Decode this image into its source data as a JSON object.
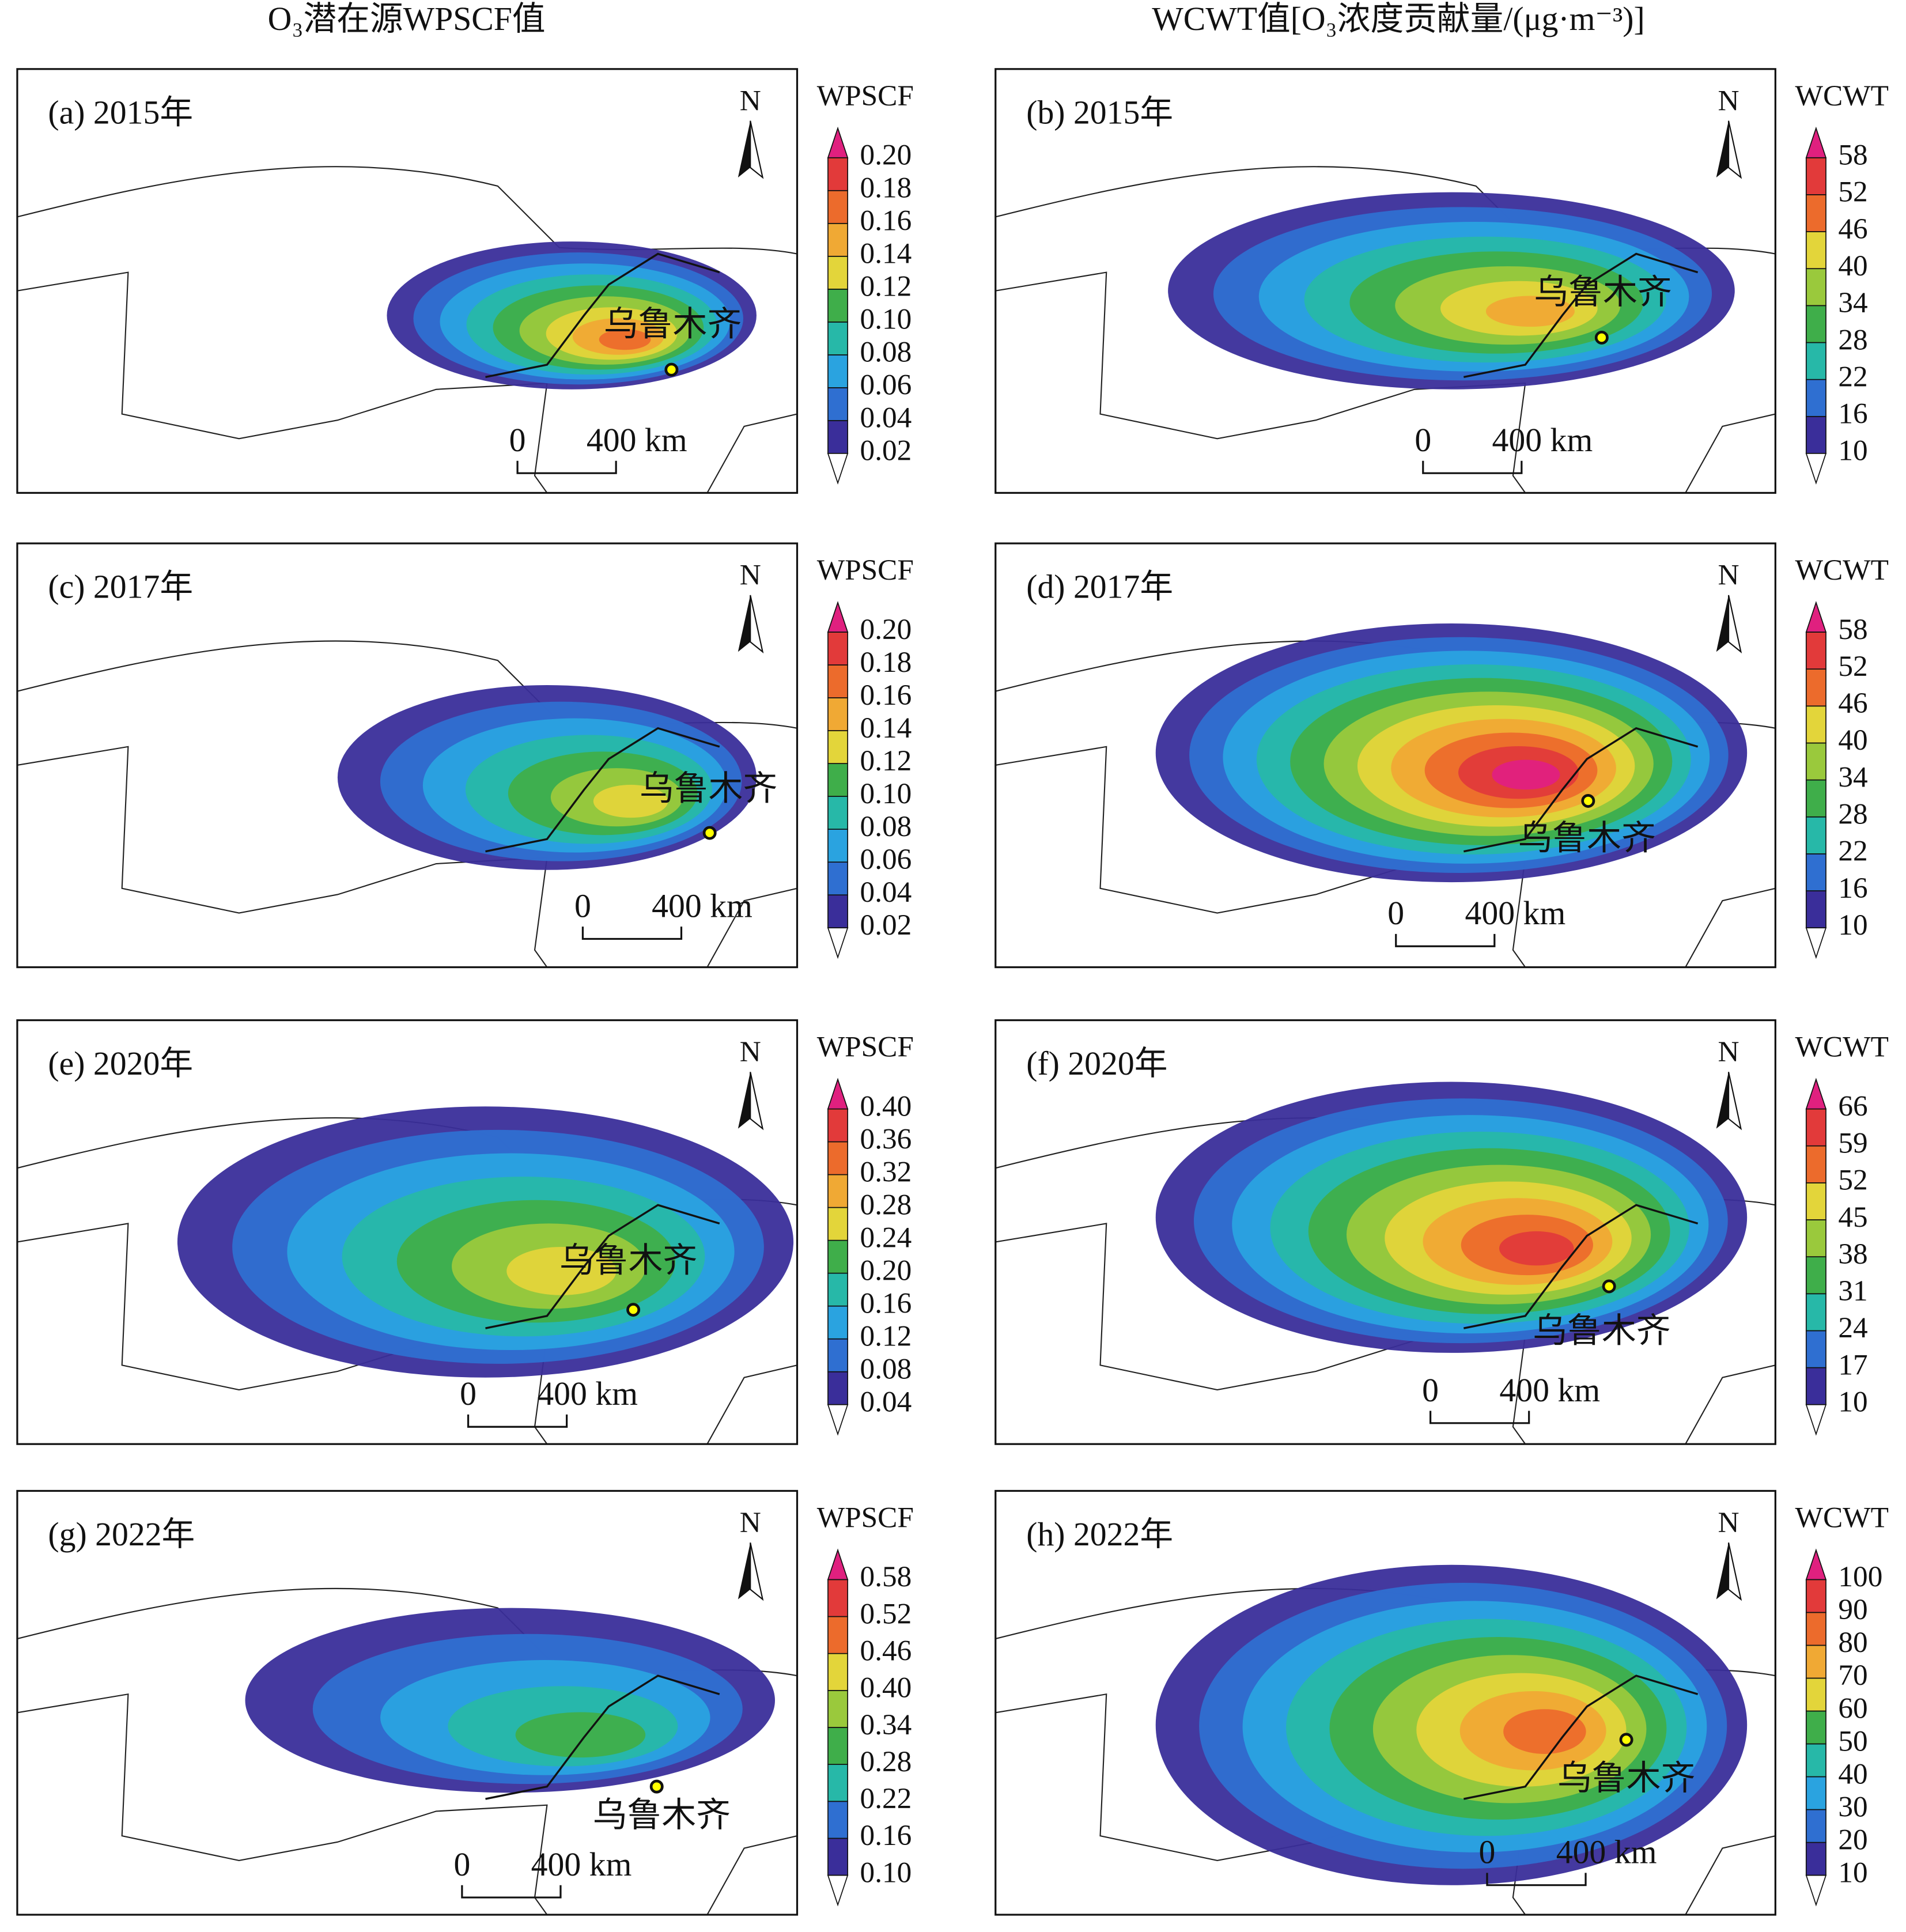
{
  "headers": [
    "O₃潜在源WPSCF值",
    "WCWT值[O₃浓度贡献量/(μg·m⁻³)]"
  ],
  "panels": [
    {
      "label": "(a) 2015年",
      "legend_title": "WPSCF",
      "ticks": [
        "0.02",
        "0.04",
        "0.06",
        "0.08",
        "0.10",
        "0.12",
        "0.14",
        "0.16",
        "0.18",
        "0.20"
      ],
      "north": "N",
      "city": "乌鲁木齐",
      "scale": [
        "0",
        "400 km"
      ]
    },
    {
      "label": "(b) 2015年",
      "legend_title": "WCWT",
      "ticks": [
        "10",
        "16",
        "22",
        "28",
        "34",
        "40",
        "46",
        "52",
        "58"
      ],
      "north": "N",
      "city": "乌鲁木齐",
      "scale": [
        "0",
        "400 km"
      ]
    },
    {
      "label": "(c) 2017年",
      "legend_title": "WPSCF",
      "ticks": [
        "0.02",
        "0.04",
        "0.06",
        "0.08",
        "0.10",
        "0.12",
        "0.14",
        "0.16",
        "0.18",
        "0.20"
      ],
      "north": "N",
      "city": "乌鲁木齐",
      "scale": [
        "0",
        "400 km"
      ]
    },
    {
      "label": "(d) 2017年",
      "legend_title": "WCWT",
      "ticks": [
        "10",
        "16",
        "22",
        "28",
        "34",
        "40",
        "46",
        "52",
        "58"
      ],
      "north": "N",
      "city": "乌鲁木齐",
      "scale": [
        "0",
        "400 km"
      ]
    },
    {
      "label": "(e) 2020年",
      "legend_title": "WPSCF",
      "ticks": [
        "0.04",
        "0.08",
        "0.12",
        "0.16",
        "0.20",
        "0.24",
        "0.28",
        "0.32",
        "0.36",
        "0.40"
      ],
      "north": "N",
      "city": "乌鲁木齐",
      "scale": [
        "0",
        "400 km"
      ]
    },
    {
      "label": "(f) 2020年",
      "legend_title": "WCWT",
      "ticks": [
        "10",
        "17",
        "24",
        "31",
        "38",
        "45",
        "52",
        "59",
        "66"
      ],
      "north": "N",
      "city": "乌鲁木齐",
      "scale": [
        "0",
        "400 km"
      ]
    },
    {
      "label": "(g) 2022年",
      "legend_title": "WPSCF",
      "ticks": [
        "0.10",
        "0.16",
        "0.22",
        "0.28",
        "0.34",
        "0.40",
        "0.46",
        "0.52",
        "0.58"
      ],
      "north": "N",
      "city": "乌鲁木齐",
      "scale": [
        "0",
        "400 km"
      ]
    },
    {
      "label": "(h) 2022年",
      "legend_title": "WCWT",
      "ticks": [
        "10",
        "20",
        "30",
        "40",
        "50",
        "60",
        "70",
        "80",
        "90",
        "100"
      ],
      "north": "N",
      "city": "乌鲁木齐",
      "scale": [
        "0",
        "400 km"
      ]
    }
  ]
}
